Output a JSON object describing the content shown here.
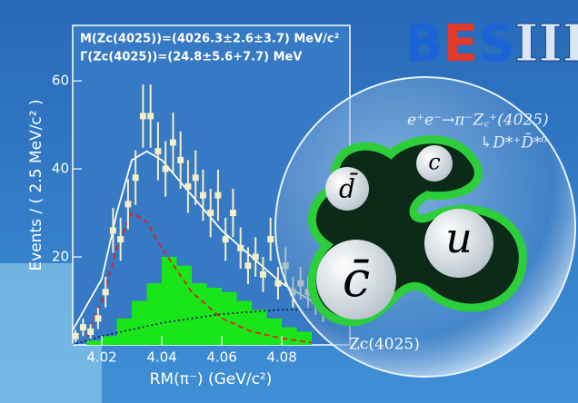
{
  "chart_data": {
    "type": "scatter",
    "annotations": [
      "M(Zc(4025))=(4026.3±2.6±3.7) MeV/c²",
      "Γ(Zc(4025))=(24.8±5.6+7.7) MeV"
    ],
    "xlabel": "RM(π⁻) (GeV/c²)",
    "ylabel": "Events / ( 2.5 MeV/c² )",
    "xlim": [
      4.0103,
      4.1027
    ],
    "ylim": [
      0,
      72.6
    ],
    "xticks": [
      4.02,
      4.04,
      4.06,
      4.08
    ],
    "yticks": [
      20,
      40,
      60
    ],
    "points": {
      "color": "#f3efc6",
      "x": [
        4.01125,
        4.01375,
        4.01625,
        4.01875,
        4.02125,
        4.02375,
        4.02625,
        4.02875,
        4.03125,
        4.03375,
        4.03625,
        4.03875,
        4.04125,
        4.04375,
        4.04625,
        4.04875,
        4.05125,
        4.05375,
        4.05625,
        4.05875,
        4.06125,
        4.06375,
        4.06625,
        4.06875,
        4.07125,
        4.07375,
        4.07625,
        4.07875,
        4.08125,
        4.08375,
        4.08625,
        4.08875,
        4.09125,
        4.09375
      ],
      "values": [
        2,
        4,
        3,
        6,
        12,
        26,
        24,
        32,
        38,
        52,
        52,
        44,
        40,
        46,
        42,
        36,
        38,
        34,
        30,
        34,
        24,
        30,
        22,
        18,
        20,
        16,
        24,
        14,
        18,
        12,
        14,
        12,
        10,
        8
      ],
      "errors": [
        1.4,
        2,
        1.7,
        2.4,
        3.5,
        5.1,
        4.9,
        5.7,
        6.2,
        7.2,
        7.2,
        6.6,
        6.3,
        6.8,
        6.5,
        6,
        6.2,
        5.8,
        5.5,
        5.8,
        4.9,
        5.5,
        4.7,
        4.2,
        4.5,
        4,
        4.9,
        3.7,
        4.2,
        3.5,
        3.7,
        3.5,
        3.2,
        2.8
      ]
    },
    "histogram": {
      "color": "#19e619",
      "bins": [
        4.015,
        4.02,
        4.025,
        4.03,
        4.035,
        4.04,
        4.045,
        4.05,
        4.055,
        4.06,
        4.065,
        4.07,
        4.075,
        4.08,
        4.085,
        4.09
      ],
      "counts": [
        1,
        2,
        6,
        10,
        14,
        20,
        18,
        14,
        13,
        12,
        10,
        8,
        6,
        4,
        3
      ]
    },
    "series": [
      {
        "color": "#ffffff",
        "dash": "",
        "x": [
          4.01,
          4.02,
          4.025,
          4.03,
          4.035,
          4.04,
          4.05,
          4.06,
          4.07,
          4.08,
          4.09,
          4.1
        ],
        "values": [
          3,
          15,
          30,
          42,
          44,
          42,
          34,
          26,
          20,
          14,
          10,
          7
        ]
      },
      {
        "color": "#e02020",
        "dash": "6 4",
        "x": [
          4.015,
          4.02,
          4.025,
          4.03,
          4.035,
          4.04,
          4.05,
          4.06,
          4.07,
          4.08,
          4.09
        ],
        "values": [
          2,
          10,
          22,
          30,
          28,
          22,
          12,
          6,
          3,
          1.5,
          0.5
        ]
      },
      {
        "color": "#102050",
        "dash": "2 3",
        "x": [
          4.01,
          4.02,
          4.04,
          4.06,
          4.08,
          4.1
        ],
        "values": [
          0,
          2,
          5,
          7,
          8,
          8
        ]
      }
    ]
  },
  "logo": [
    "B",
    "E",
    "S",
    "III"
  ],
  "reaction": "e⁺e⁻→π⁻Z꜀⁺(4025)",
  "decay": "↳D*⁺D̄*⁰",
  "quarks": [
    "d̄",
    "c",
    "c̄",
    "u"
  ],
  "particle": "Zc(4025)"
}
